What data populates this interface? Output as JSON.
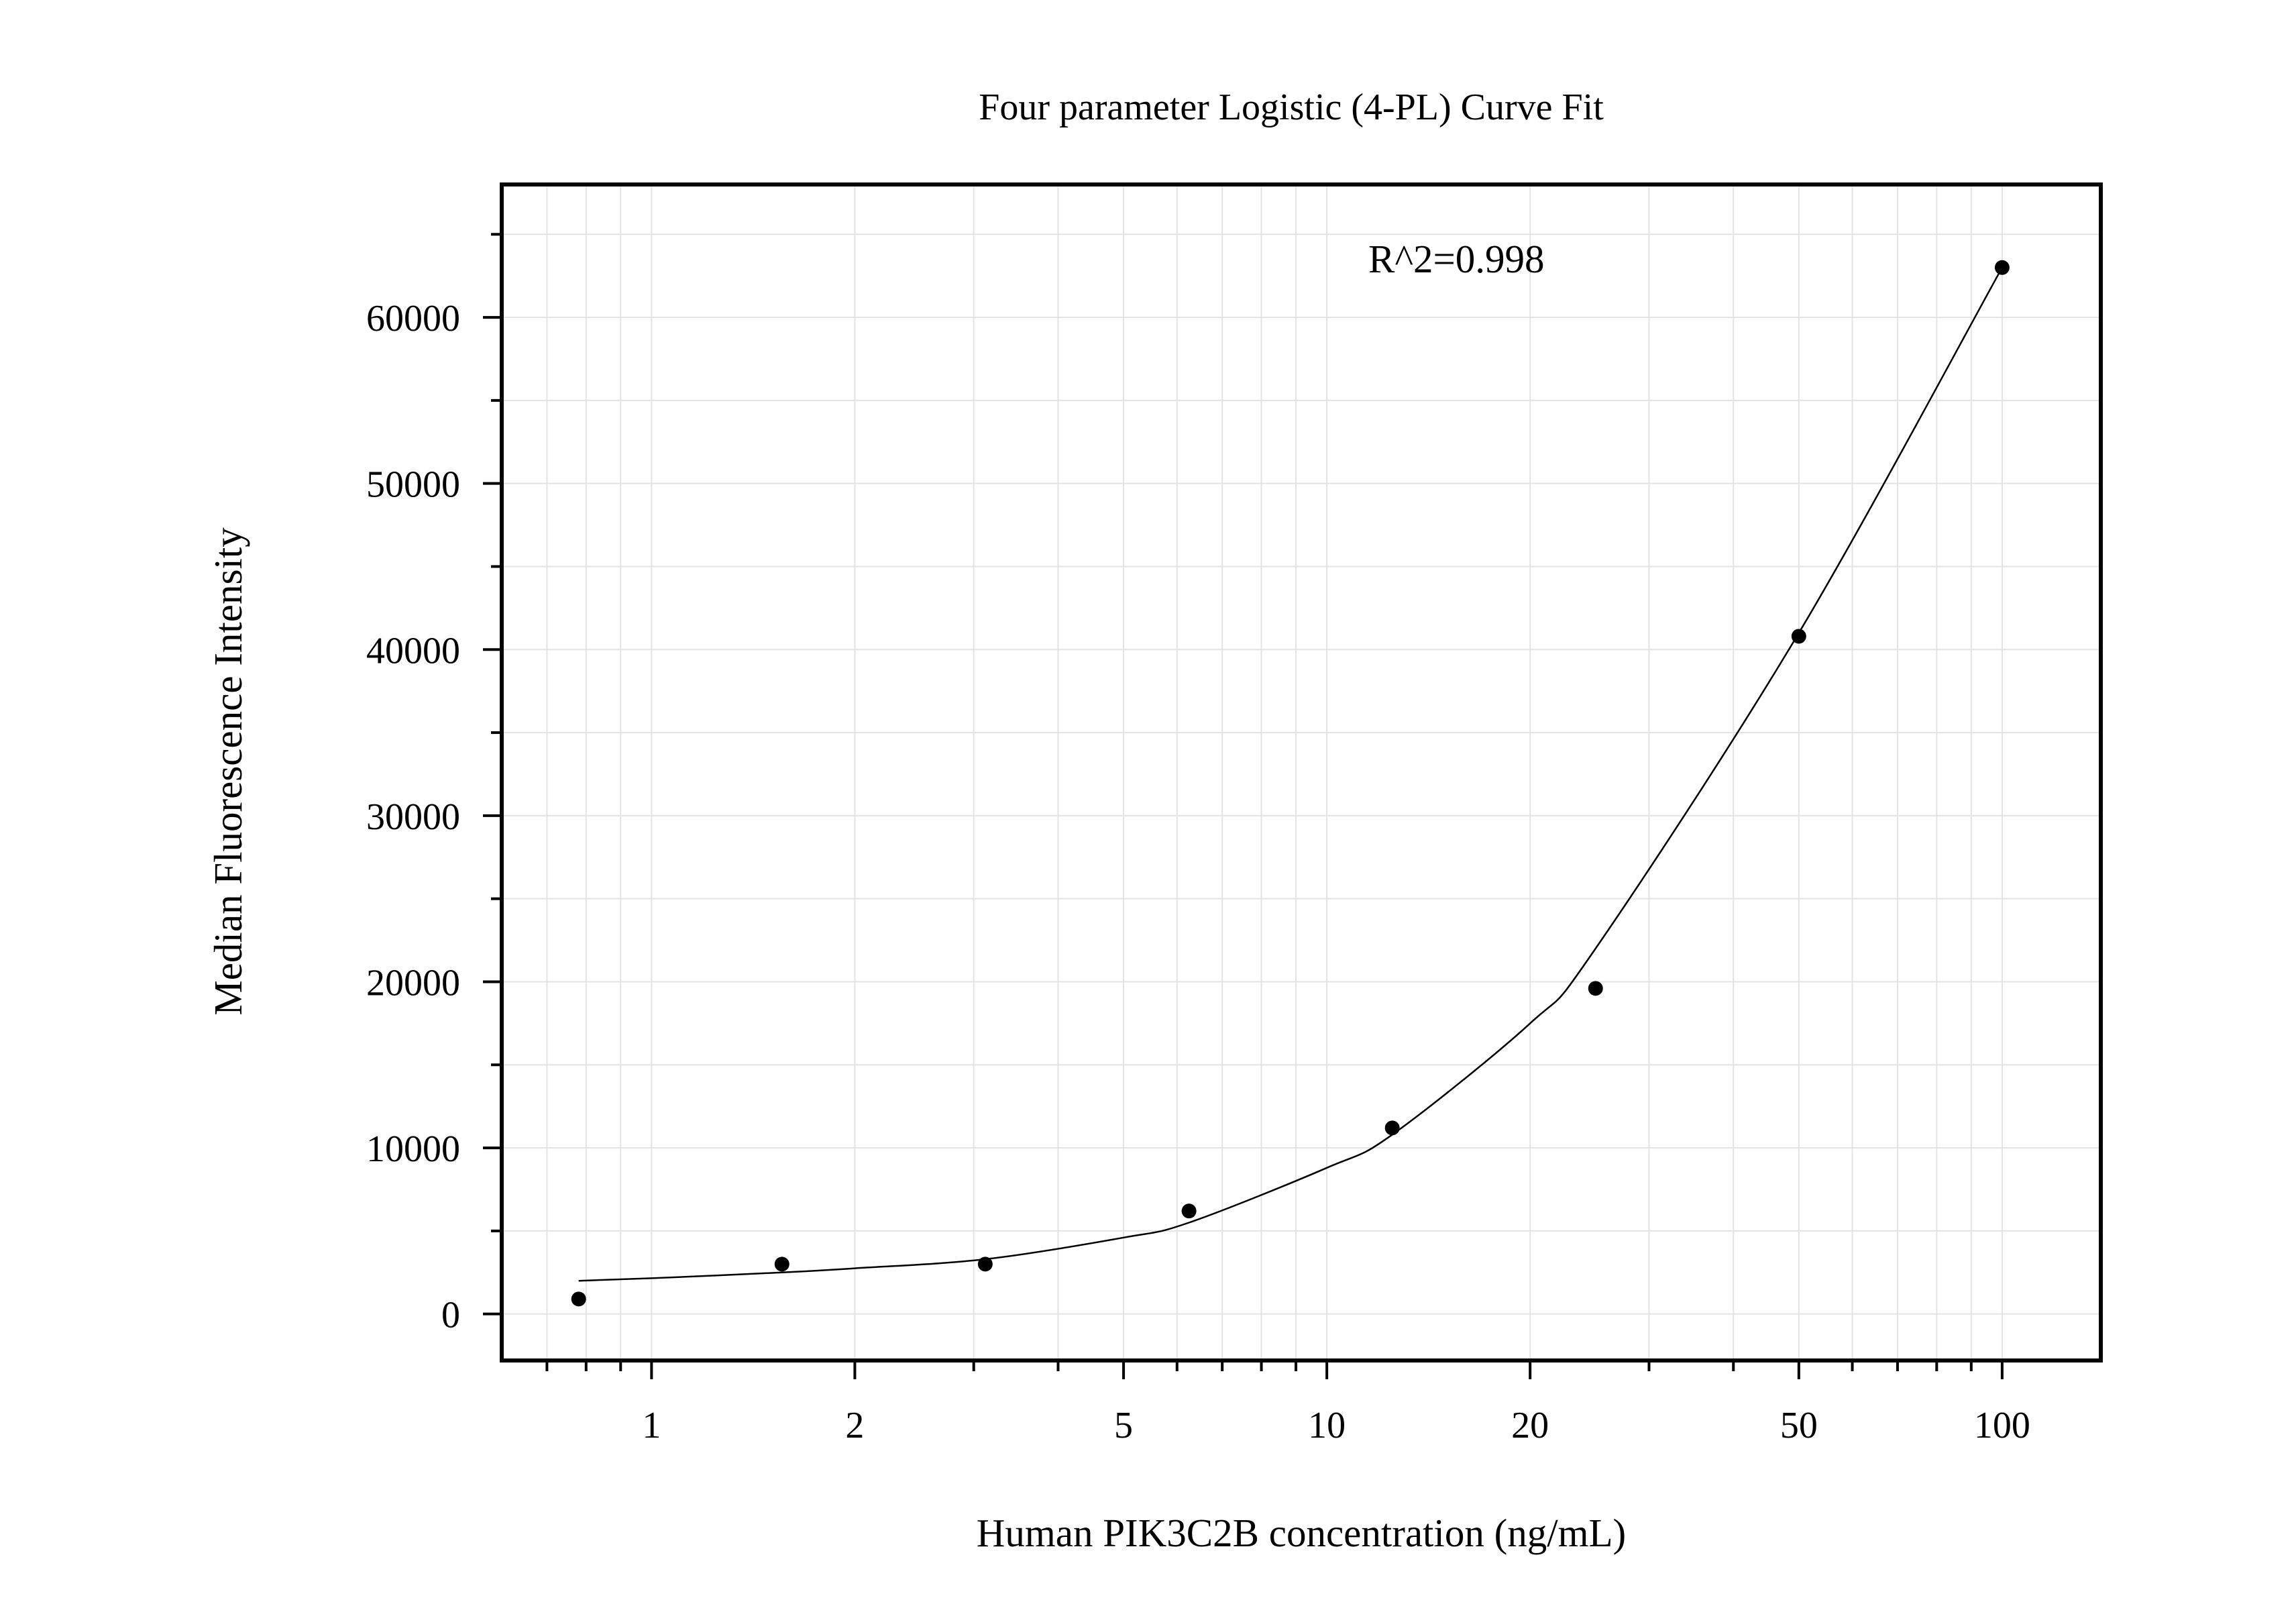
{
  "chart_data": {
    "type": "scatter",
    "title": "Four parameter Logistic (4-PL) Curve Fit",
    "xlabel": "Human PIK3C2B concentration (ng/mL)",
    "ylabel": "Median Fluorescence Intensity",
    "x_scale": "log",
    "xlim": [
      0.6,
      140
    ],
    "ylim": [
      -2800,
      68000
    ],
    "x_ticks": [
      1,
      2,
      5,
      10,
      20,
      50,
      100
    ],
    "x_tick_labels": [
      "1",
      "2",
      "5",
      "10",
      "20",
      "50",
      "100"
    ],
    "y_ticks": [
      0,
      10000,
      20000,
      30000,
      40000,
      50000,
      60000
    ],
    "y_tick_labels": [
      "0",
      "10000",
      "20000",
      "30000",
      "40000",
      "50000",
      "60000"
    ],
    "grid": true,
    "annotation": "R^2=0.998",
    "series": [
      {
        "type": "scatter",
        "x": [
          0.78,
          1.56,
          3.12,
          6.25,
          12.5,
          25,
          50,
          100
        ],
        "y": [
          900,
          3000,
          3000,
          6200,
          11200,
          19600,
          40800,
          63000
        ]
      },
      {
        "type": "line",
        "x": [
          0.78,
          1,
          1.56,
          2,
          3.12,
          5,
          6.25,
          10,
          12.5,
          20,
          25,
          50,
          100
        ],
        "y": [
          2000,
          2150,
          2500,
          2750,
          3300,
          4600,
          5500,
          8800,
          10800,
          17500,
          22000,
          41000,
          63000
        ]
      }
    ]
  }
}
